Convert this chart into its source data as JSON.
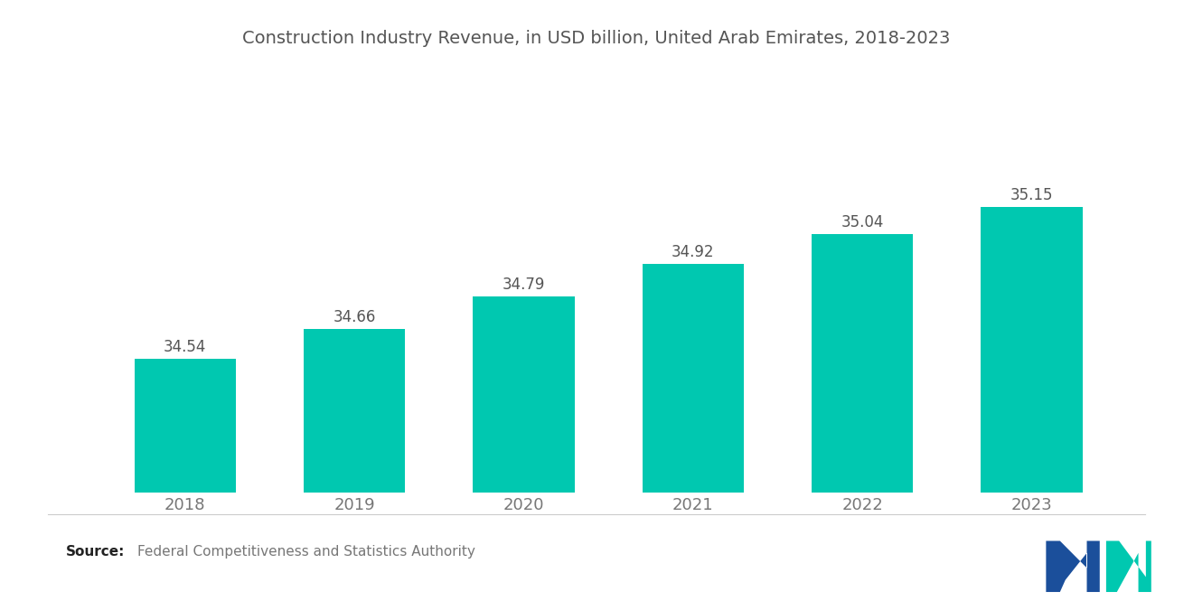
{
  "title": "Construction Industry Revenue, in USD billion, United Arab Emirates, 2018-2023",
  "categories": [
    "2018",
    "2019",
    "2020",
    "2021",
    "2022",
    "2023"
  ],
  "values": [
    34.54,
    34.66,
    34.79,
    34.92,
    35.04,
    35.15
  ],
  "bar_color": "#00C8B0",
  "background_color": "#ffffff",
  "title_color": "#555555",
  "label_color": "#555555",
  "tick_color": "#777777",
  "source_text": "Federal Competitiveness and Statistics Authority",
  "source_label": "Source:",
  "ylim_min": 34.0,
  "ylim_max": 35.5,
  "bar_width": 0.6,
  "title_fontsize": 14,
  "label_fontsize": 12,
  "tick_fontsize": 13,
  "source_fontsize": 11
}
